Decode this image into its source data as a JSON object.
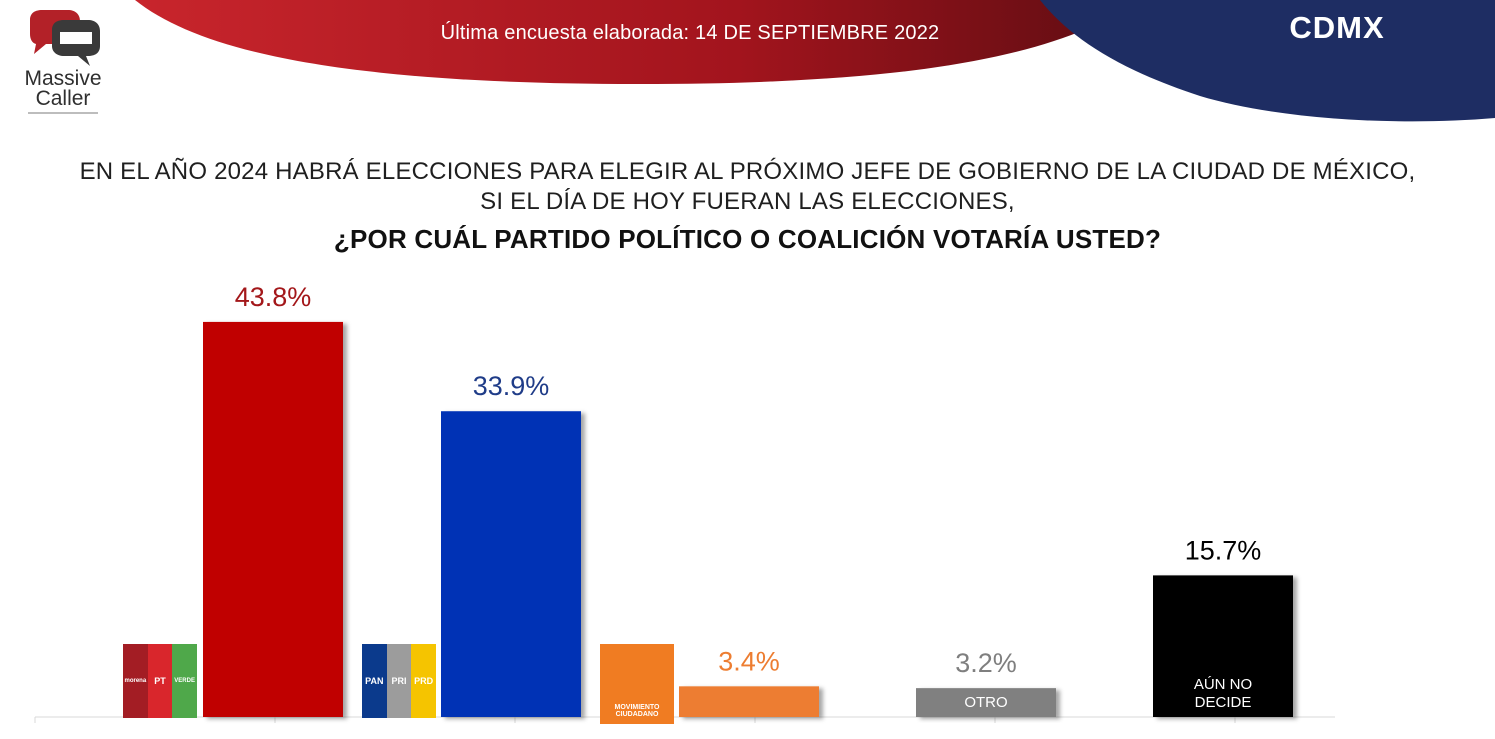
{
  "header": {
    "brand_line1": "Massive",
    "brand_line2": "Caller",
    "survey_date": "Última encuesta elaborada: 14 DE SEPTIEMBRE 2022",
    "region": "CDMX",
    "colors": {
      "red": "#b01722",
      "dark_red": "#6e0f14",
      "navy": "#1e2d63"
    }
  },
  "question": {
    "line1": "EN EL AÑO 2024 HABRÁ ELECCIONES PARA ELEGIR AL PRÓXIMO JEFE DE GOBIERNO DE  LA CIUDAD DE MÉXICO,",
    "line2": "SI EL DÍA DE HOY FUERAN LAS ELECCIONES,",
    "line3": "¿POR CUÁL PARTIDO POLÍTICO O COALICIÓN VOTARÍA USTED?"
  },
  "chart_data": {
    "type": "bar",
    "title": "¿POR CUÁL PARTIDO POLÍTICO O COALICIÓN VOTARÍA USTED?",
    "xlabel": "",
    "ylabel": "",
    "ylim": [
      0,
      50
    ],
    "grid": false,
    "categories": [
      "MORENA / PT / VERDE",
      "PAN / PRI / PRD",
      "MOVIMIENTO CIUDADANO",
      "OTRO",
      "AÚN NO DECIDE"
    ],
    "values": [
      43.8,
      33.9,
      3.4,
      3.2,
      15.7
    ],
    "value_labels": [
      "43.8%",
      "33.9%",
      "3.4%",
      "3.2%",
      "15.7%"
    ],
    "bar_colors": [
      "#c00000",
      "#0033b5",
      "#ed7d31",
      "#808080",
      "#000000"
    ],
    "label_colors": [
      "#a3171a",
      "#1f3c88",
      "#ed7d31",
      "#7f7f7f",
      "#000000"
    ],
    "inside_labels": [
      "",
      "",
      "",
      "OTRO",
      "AÚN NO\nDECIDE"
    ]
  },
  "party_logos": [
    {
      "name": "morena-pt-verde-logo",
      "segments": [
        {
          "text": "morena",
          "color": "#a31d24"
        },
        {
          "text": "PT",
          "color": "#d9262c"
        },
        {
          "text": "VERDE",
          "color": "#4fa84a"
        }
      ]
    },
    {
      "name": "pan-pri-prd-logo",
      "segments": [
        {
          "text": "PAN",
          "color": "#0b3a8c"
        },
        {
          "text": "PRI",
          "color": "#9c9c9c"
        },
        {
          "text": "PRD",
          "color": "#f5c400"
        }
      ]
    },
    {
      "name": "movimiento-ciudadano-logo",
      "segments": [
        {
          "text": "MOVIMIENTO CIUDADANO",
          "color": "#f07c22"
        }
      ]
    }
  ]
}
